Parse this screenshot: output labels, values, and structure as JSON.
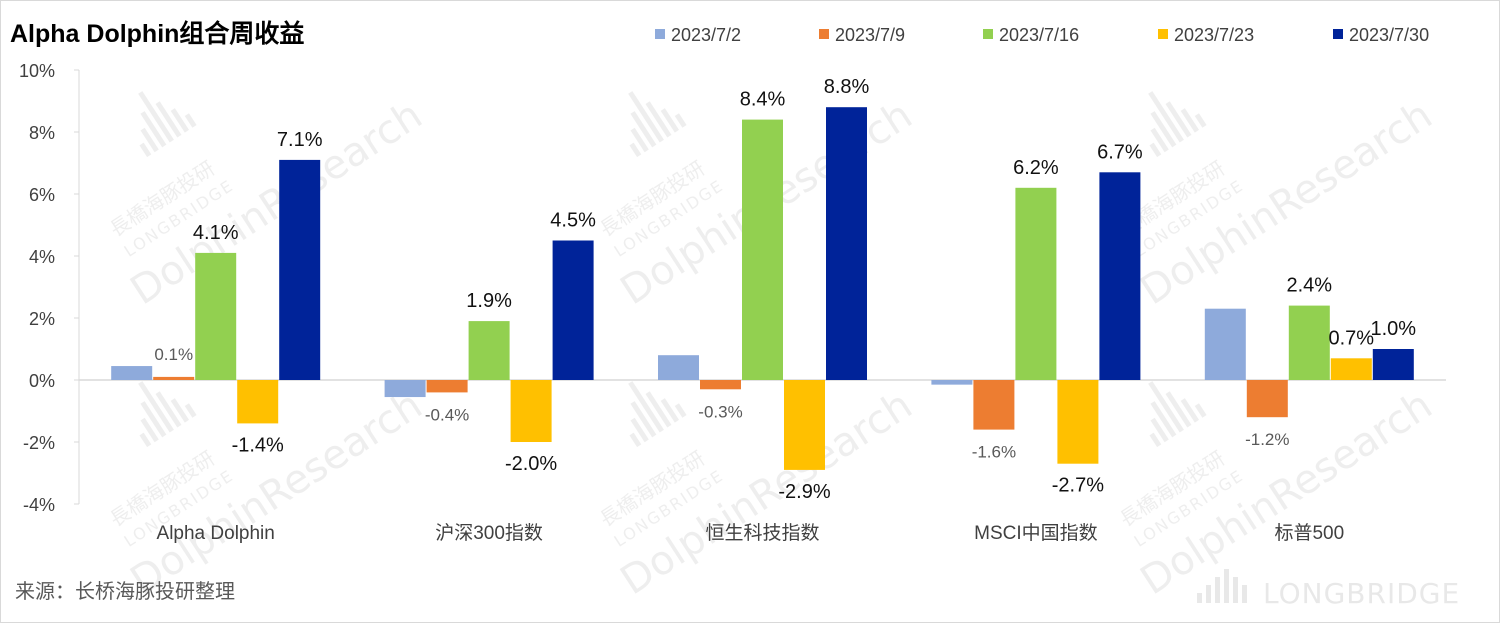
{
  "chart_data": {
    "type": "bar",
    "title": "Alpha Dolphin组合周收益",
    "categories": [
      "Alpha Dolphin",
      "沪深300指数",
      "恒生科技指数",
      "MSCI中国指数",
      "标普500"
    ],
    "series": [
      {
        "name": "2023/7/2",
        "color": "#8eaadb",
        "values": [
          0.45,
          -0.55,
          0.8,
          -0.15,
          2.3
        ]
      },
      {
        "name": "2023/7/9",
        "color": "#ed7d31",
        "values": [
          0.1,
          -0.4,
          -0.3,
          -1.6,
          -1.2
        ]
      },
      {
        "name": "2023/7/16",
        "color": "#92d050",
        "values": [
          4.1,
          1.9,
          8.4,
          6.2,
          2.4
        ]
      },
      {
        "name": "2023/7/23",
        "color": "#ffc000",
        "values": [
          -1.4,
          -2.0,
          -2.9,
          -2.7,
          0.7
        ]
      },
      {
        "name": "2023/7/30",
        "color": "#002399",
        "values": [
          7.1,
          4.5,
          8.8,
          6.7,
          1.0
        ]
      }
    ],
    "data_labels": [
      {
        "series": 1,
        "category": 0,
        "text": "0.1%"
      },
      {
        "series": 2,
        "category": 0,
        "text": "4.1%"
      },
      {
        "series": 3,
        "category": 0,
        "text": "-1.4%"
      },
      {
        "series": 4,
        "category": 0,
        "text": "7.1%"
      },
      {
        "series": 1,
        "category": 1,
        "text": "-0.4%"
      },
      {
        "series": 2,
        "category": 1,
        "text": "1.9%"
      },
      {
        "series": 3,
        "category": 1,
        "text": "-2.0%"
      },
      {
        "series": 4,
        "category": 1,
        "text": "4.5%"
      },
      {
        "series": 1,
        "category": 2,
        "text": "-0.3%"
      },
      {
        "series": 2,
        "category": 2,
        "text": "8.4%"
      },
      {
        "series": 3,
        "category": 2,
        "text": "-2.9%"
      },
      {
        "series": 4,
        "category": 2,
        "text": "8.8%"
      },
      {
        "series": 1,
        "category": 3,
        "text": "-1.6%"
      },
      {
        "series": 2,
        "category": 3,
        "text": "6.2%"
      },
      {
        "series": 3,
        "category": 3,
        "text": "-2.7%"
      },
      {
        "series": 4,
        "category": 3,
        "text": "6.7%"
      },
      {
        "series": 1,
        "category": 4,
        "text": "-1.2%"
      },
      {
        "series": 2,
        "category": 4,
        "text": "2.4%"
      },
      {
        "series": 3,
        "category": 4,
        "text": "0.7%"
      },
      {
        "series": 4,
        "category": 4,
        "text": "1.0%"
      }
    ],
    "ylim": [
      -4,
      10
    ],
    "yticks": [
      "-4%",
      "-2%",
      "0%",
      "2%",
      "4%",
      "6%",
      "8%",
      "10%"
    ],
    "xlabel": "",
    "ylabel": "",
    "grid": false,
    "legend": "top-right"
  },
  "source_note": "来源：长桥海豚投研整理",
  "watermark": {
    "cn": "長橋海豚投研",
    "en": "LONGBRIDGE",
    "brand": "DolphinResearch",
    "footer_logo": "LONGBRIDGE"
  }
}
